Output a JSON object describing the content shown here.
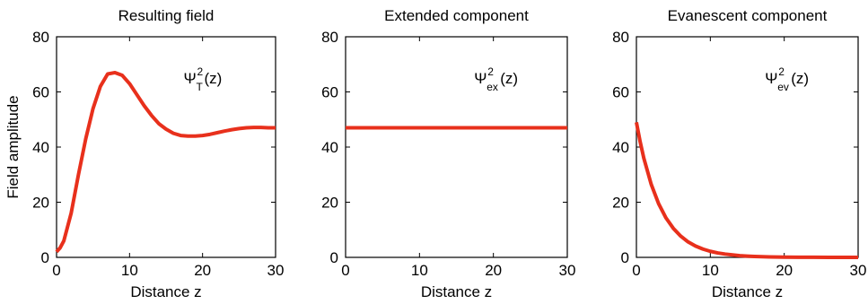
{
  "chart_data": [
    {
      "type": "line",
      "title": "Resulting field",
      "xlabel": "Distance z",
      "ylabel": "Field amplitude",
      "xlim": [
        0,
        30
      ],
      "ylim": [
        0,
        80
      ],
      "xticks": [
        "0",
        "10",
        "20",
        "30"
      ],
      "yticks": [
        "0",
        "20",
        "40",
        "60",
        "80"
      ],
      "annotation": {
        "base": "Ψ",
        "sup": "2",
        "sub": "T",
        "suffix": "(z)"
      },
      "line_color": "#e8301c",
      "grid": false,
      "series": [
        {
          "x": [
            0,
            0.5,
            1,
            2,
            3,
            4,
            5,
            6,
            7,
            8,
            9,
            10,
            11,
            12,
            13,
            14,
            15,
            16,
            17,
            18,
            19,
            20,
            21,
            22,
            23,
            24,
            25,
            26,
            27,
            28,
            29,
            30
          ],
          "y": [
            2,
            3.5,
            6,
            16,
            30,
            43,
            54,
            62,
            66.5,
            67,
            66,
            63,
            59,
            55,
            51.5,
            48.5,
            46.5,
            45,
            44.2,
            44,
            44,
            44.2,
            44.6,
            45.2,
            45.8,
            46.3,
            46.7,
            47,
            47.1,
            47.1,
            47,
            47
          ]
        }
      ]
    },
    {
      "type": "line",
      "title": "Extended component",
      "xlabel": "Distance z",
      "ylabel": "",
      "xlim": [
        0,
        30
      ],
      "ylim": [
        0,
        80
      ],
      "xticks": [
        "0",
        "10",
        "20",
        "30"
      ],
      "yticks": [
        "0",
        "20",
        "40",
        "60",
        "80"
      ],
      "annotation": {
        "base": "Ψ",
        "sup": "2",
        "sub": "ex",
        "suffix": "(z)"
      },
      "line_color": "#e8301c",
      "grid": false,
      "series": [
        {
          "x": [
            0,
            30
          ],
          "y": [
            47,
            47
          ]
        }
      ]
    },
    {
      "type": "line",
      "title": "Evanescent component",
      "xlabel": "Distance z",
      "ylabel": "",
      "xlim": [
        0,
        30
      ],
      "ylim": [
        0,
        80
      ],
      "xticks": [
        "0",
        "10",
        "20",
        "30"
      ],
      "yticks": [
        "0",
        "20",
        "40",
        "60",
        "80"
      ],
      "annotation": {
        "base": "Ψ",
        "sup": "2",
        "sub": "ev",
        "suffix": "(z)"
      },
      "line_color": "#e8301c",
      "grid": false,
      "series": [
        {
          "x": [
            0,
            0.5,
            1,
            2,
            3,
            4,
            5,
            6,
            7,
            8,
            9,
            10,
            11,
            12,
            13,
            14,
            15,
            16,
            17,
            18,
            20,
            22,
            24,
            26,
            28,
            30
          ],
          "y": [
            49,
            42,
            36,
            26.5,
            19.5,
            14.3,
            10.5,
            7.7,
            5.6,
            4.1,
            3,
            2.2,
            1.6,
            1.2,
            0.9,
            0.6,
            0.45,
            0.33,
            0.24,
            0.18,
            0.1,
            0.05,
            0.03,
            0.02,
            0.01,
            0
          ]
        }
      ]
    }
  ]
}
